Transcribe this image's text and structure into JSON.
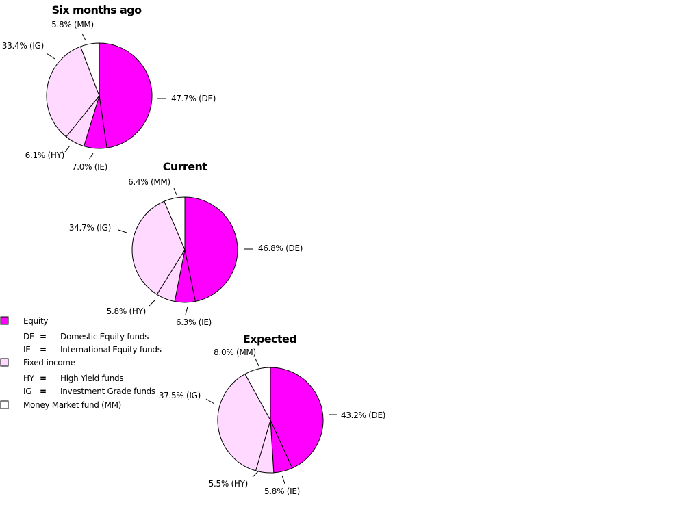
{
  "colors": {
    "equity": "#ff00ff",
    "fixed_income": "#ffd9ff",
    "money_market": "#ffffff",
    "outline": "#000000"
  },
  "chart_data": [
    {
      "type": "pie",
      "title": "Six months ago",
      "slices": [
        {
          "code": "DE",
          "value": 47.7,
          "label": "47.7% (DE)",
          "group": "equity"
        },
        {
          "code": "IE",
          "value": 7.0,
          "label": "7.0% (IE)",
          "group": "equity"
        },
        {
          "code": "HY",
          "value": 6.1,
          "label": "6.1% (HY)",
          "group": "fixed_income"
        },
        {
          "code": "IG",
          "value": 33.4,
          "label": "33.4% (IG)",
          "group": "fixed_income"
        },
        {
          "code": "MM",
          "value": 5.8,
          "label": "5.8% (MM)",
          "group": "money_market"
        }
      ]
    },
    {
      "type": "pie",
      "title": "Current",
      "slices": [
        {
          "code": "DE",
          "value": 46.8,
          "label": "46.8% (DE)",
          "group": "equity"
        },
        {
          "code": "IE",
          "value": 6.3,
          "label": "6.3% (IE)",
          "group": "equity"
        },
        {
          "code": "HY",
          "value": 5.8,
          "label": "5.8% (HY)",
          "group": "fixed_income"
        },
        {
          "code": "IG",
          "value": 34.7,
          "label": "34.7% (IG)",
          "group": "fixed_income"
        },
        {
          "code": "MM",
          "value": 6.4,
          "label": "6.4% (MM)",
          "group": "money_market"
        }
      ]
    },
    {
      "type": "pie",
      "title": "Expected",
      "slices": [
        {
          "code": "DE",
          "value": 43.2,
          "label": "43.2% (DE)",
          "group": "equity"
        },
        {
          "code": "IE",
          "value": 5.8,
          "label": "5.8% (IE)",
          "group": "equity"
        },
        {
          "code": "HY",
          "value": 5.5,
          "label": "5.5% (HY)",
          "group": "fixed_income"
        },
        {
          "code": "IG",
          "value": 37.5,
          "label": "37.5% (IG)",
          "group": "fixed_income"
        },
        {
          "code": "MM",
          "value": 8.0,
          "label": "8.0% (MM)",
          "group": "money_market"
        }
      ]
    }
  ],
  "legend": {
    "equity_label": "Equity",
    "equity_items": [
      {
        "code": "DE",
        "eq": "=",
        "desc": "Domestic Equity funds"
      },
      {
        "code": "IE",
        "eq": "=",
        "desc": "International Equity funds"
      }
    ],
    "fixed_income_label": "Fixed-income",
    "fixed_income_items": [
      {
        "code": "HY",
        "eq": "=",
        "desc": "High Yield funds"
      },
      {
        "code": "IG",
        "eq": "=",
        "desc": "Investment Grade funds"
      }
    ],
    "money_market_label": "Money Market fund (MM)"
  }
}
